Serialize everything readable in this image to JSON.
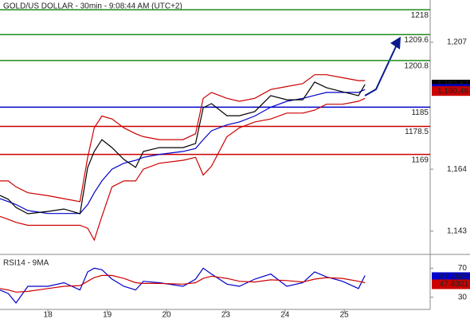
{
  "chart_data": {
    "type": "line",
    "title": "GOLD/US DOLLAR - 30min - 9:08:44 AM (UTC+2)",
    "x": [
      0.19,
      0.33,
      0.46,
      0.66,
      1.0,
      1.27,
      1.54,
      1.67,
      1.78,
      1.91,
      2.08,
      2.28,
      2.48,
      2.61,
      2.88,
      3.28,
      3.49,
      3.62,
      3.76,
      4.02,
      4.23,
      4.49,
      4.76,
      5.03,
      5.3,
      5.5,
      5.7,
      5.97,
      6.24,
      6.35
    ],
    "xlim": [
      0.19,
      7.45
    ],
    "xticks": [
      {
        "value": 1,
        "label": "18"
      },
      {
        "value": 2,
        "label": "19"
      },
      {
        "value": 3,
        "label": "20"
      },
      {
        "value": 4,
        "label": "23"
      },
      {
        "value": 5,
        "label": "24"
      },
      {
        "value": 6,
        "label": "25"
      }
    ],
    "ylim": [
      1135.4,
      1221.3
    ],
    "yticks": [
      {
        "value": 1207,
        "label": "1,207"
      },
      {
        "value": 1164,
        "label": "1,164"
      },
      {
        "value": 1143,
        "label": "1,143"
      }
    ],
    "series": [
      {
        "color": "#cc0000",
        "values": [
          1160,
          1160,
          1158,
          1156,
          1155,
          1154,
          1153,
          1168,
          1178,
          1182,
          1181,
          1178,
          1176,
          1175,
          1174,
          1174,
          1176,
          1188,
          1190,
          1188,
          1187,
          1188,
          1191,
          1192,
          1193,
          1196,
          1196,
          1195,
          1194,
          1194
        ]
      },
      {
        "color": "#cc0000",
        "values": [
          1148,
          1147,
          1146,
          1145,
          1145,
          1145,
          1145,
          1144,
          1140,
          1148,
          1158,
          1160,
          1160,
          1164,
          1166,
          1167,
          1168,
          1162,
          1165,
          1175,
          1178,
          1180,
          1181,
          1183,
          1183,
          1184,
          1186,
          1186,
          1187,
          1188
        ]
      },
      {
        "color": "#0000cc",
        "values": [
          1154,
          1153,
          1152,
          1150,
          1149,
          1149,
          1149,
          1152,
          1156,
          1160,
          1164,
          1166,
          1167,
          1168,
          1169,
          1170,
          1171,
          1174,
          1177,
          1179,
          1180,
          1182,
          1185,
          1187,
          1188,
          1189,
          1190,
          1190,
          1190,
          1191
        ]
      },
      {
        "color": "#000000",
        "values": [
          1155.1,
          1153.8,
          1151,
          1148.9,
          1149.7,
          1150.5,
          1148.9,
          1164.6,
          1170,
          1174,
          1171.3,
          1167.3,
          1164.6,
          1170,
          1171.3,
          1171.3,
          1172.7,
          1184.8,
          1186.2,
          1182.1,
          1182.1,
          1183.5,
          1188.9,
          1187.5,
          1187.5,
          1193.5,
          1191.6,
          1190.2,
          1188.9,
          1192.7
        ]
      }
    ],
    "levels": [
      {
        "value": 1218,
        "color": "#1f8a1f"
      },
      {
        "value": 1209.6,
        "color": "#1f8a1f"
      },
      {
        "value": 1200.8,
        "color": "#1f8a1f"
      },
      {
        "value": 1185,
        "color": "#0000cc"
      },
      {
        "value": 1178.5,
        "color": "#cc0000"
      },
      {
        "value": 1169,
        "color": "#cc0000"
      }
    ],
    "last_values": [
      {
        "value": 1192.67,
        "label": "1,192.67",
        "color": "#000000"
      },
      {
        "value": 1191.21,
        "label": "1,191.21",
        "color": "#0000cc"
      },
      {
        "value": 1190.46,
        "label": "1,190.46",
        "color": "#cc0000"
      }
    ],
    "rsi": {
      "title": "RSI14 - 9MA",
      "ylim": [
        15.3,
        85.8
      ],
      "yticks": [
        70,
        30
      ],
      "series": [
        {
          "color": "#0000cc",
          "values": [
            40,
            35,
            22,
            45,
            45,
            50,
            40,
            65,
            70,
            68,
            55,
            45,
            40,
            52,
            50,
            45,
            55,
            70,
            62,
            48,
            45,
            55,
            62,
            45,
            50,
            65,
            58,
            52,
            42,
            60
          ]
        },
        {
          "color": "#cc0000",
          "values": [
            42,
            40,
            37,
            38,
            42,
            45,
            46,
            52,
            57,
            60,
            60,
            56,
            50,
            49,
            49,
            48,
            50,
            56,
            59,
            56,
            52,
            51,
            54,
            53,
            51,
            55,
            57,
            56,
            52,
            50
          ]
        }
      ],
      "last_values": [
        {
          "value": 57.7605,
          "color": "#0000cc"
        },
        {
          "value": 47.8301,
          "color": "#cc0000"
        }
      ]
    }
  }
}
